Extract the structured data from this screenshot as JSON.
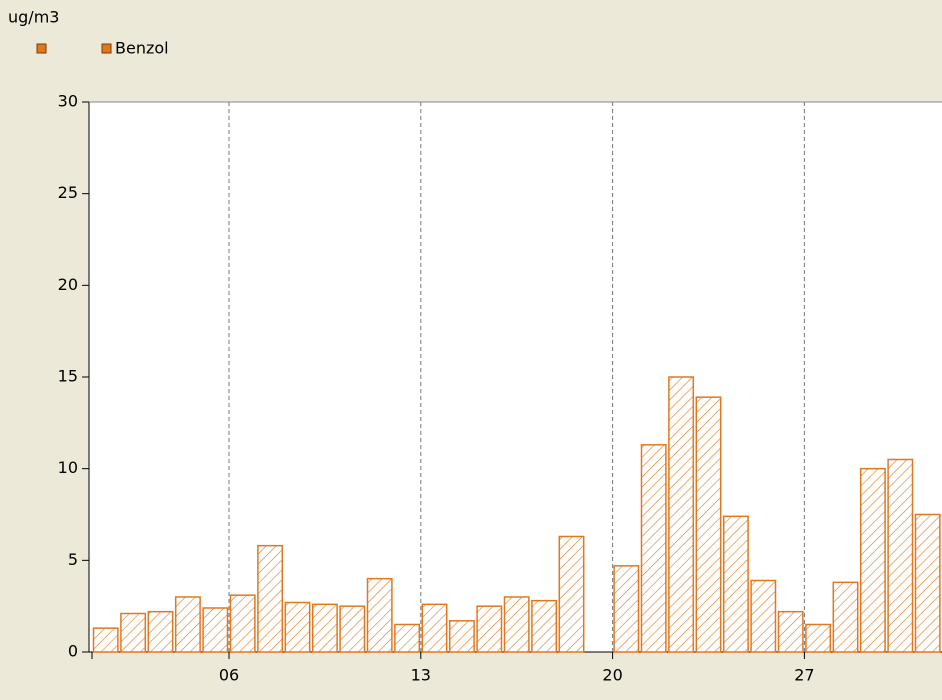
{
  "chart_data": {
    "type": "bar",
    "y_label": "ug/m3",
    "categories": [
      null,
      null,
      null,
      null,
      null,
      "06",
      null,
      null,
      null,
      null,
      null,
      null,
      "13",
      null,
      null,
      null,
      null,
      null,
      null,
      "20",
      null,
      null,
      null,
      null,
      null,
      null,
      "27",
      null,
      null,
      null,
      null
    ],
    "series": [
      {
        "name": "Benzol",
        "color": "#e07820",
        "values": [
          1.3,
          2.1,
          2.2,
          3.0,
          2.4,
          3.1,
          5.8,
          2.7,
          2.6,
          2.5,
          4.0,
          1.5,
          2.6,
          1.7,
          2.5,
          3.0,
          2.8,
          6.3,
          null,
          4.7,
          11.3,
          15.0,
          13.9,
          7.4,
          3.9,
          2.2,
          1.5,
          3.8,
          10.0,
          10.5,
          7.5
        ]
      }
    ],
    "ylim": [
      0,
      30
    ],
    "yticks": [
      0,
      5,
      10,
      15,
      20,
      25,
      30
    ],
    "grid": true
  }
}
